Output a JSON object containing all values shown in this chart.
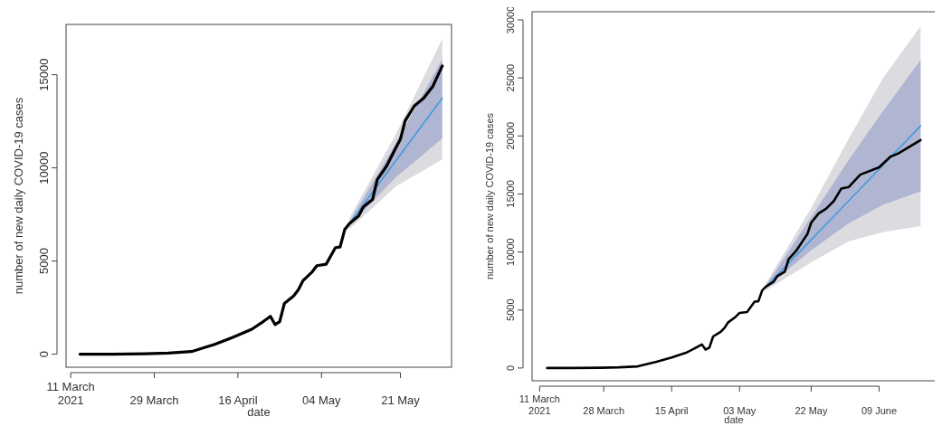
{
  "chart_data": [
    {
      "type": "line",
      "xlabel": "date",
      "ylabel": "number of new daily COVID-19 cases",
      "xlim": [
        "2021-03-10",
        "2021-06-01"
      ],
      "ylim": [
        -700,
        17700
      ],
      "xticks": [
        {
          "value": "2021-03-11",
          "label": "11 March\n2021"
        },
        {
          "value": "2021-03-29",
          "label": "29 March"
        },
        {
          "value": "2021-04-16",
          "label": "16 April"
        },
        {
          "value": "2021-05-04",
          "label": "04 May"
        },
        {
          "value": "2021-05-21",
          "label": "21 May"
        }
      ],
      "yticks": [
        0,
        5000,
        10000,
        15000
      ],
      "series": [
        {
          "color": "#dcdce0",
          "x": [
            "2021-05-10",
            "2021-05-20",
            "2021-05-30"
          ],
          "values": [
            null,
            null,
            null
          ],
          "lower": [
            6700,
            9000,
            10450
          ],
          "upper": [
            7300,
            11800,
            16920
          ]
        },
        {
          "color": "#b0b5d2",
          "x": [
            "2021-05-10",
            "2021-05-20",
            "2021-05-30"
          ],
          "values": [
            null,
            null,
            null
          ],
          "lower": [
            6900,
            9500,
            11580
          ],
          "upper": [
            7100,
            11300,
            15840
          ]
        },
        {
          "color": "#3d9be0",
          "x": [
            "2021-05-10",
            "2021-05-20",
            "2021-05-30"
          ],
          "values": [
            7000,
            10380,
            13740
          ]
        },
        {
          "color": "#000000",
          "x": [
            "2021-03-13",
            "2021-03-20",
            "2021-03-27",
            "2021-04-01",
            "2021-04-06",
            "2021-04-11",
            "2021-04-15",
            "2021-04-19",
            "2021-04-21",
            "2021-04-23",
            "2021-04-24",
            "2021-04-25",
            "2021-04-26",
            "2021-04-28",
            "2021-04-29",
            "2021-04-30",
            "2021-05-02",
            "2021-05-03",
            "2021-05-05",
            "2021-05-07",
            "2021-05-08",
            "2021-05-09",
            "2021-05-10",
            "2021-05-12",
            "2021-05-13",
            "2021-05-15",
            "2021-05-16",
            "2021-05-18",
            "2021-05-20",
            "2021-05-21",
            "2021-05-22",
            "2021-05-24",
            "2021-05-26",
            "2021-05-28",
            "2021-05-30"
          ],
          "values": [
            0,
            0,
            20,
            60,
            140,
            530,
            910,
            1340,
            1670,
            2030,
            1590,
            1750,
            2720,
            3120,
            3450,
            3940,
            4420,
            4750,
            4830,
            5720,
            5750,
            6690,
            7010,
            7420,
            7910,
            8310,
            9370,
            10090,
            11070,
            11550,
            12520,
            13330,
            13740,
            14390,
            15470
          ]
        }
      ]
    },
    {
      "type": "line",
      "xlabel": "date",
      "ylabel": "number of new daily COVID-19 cases",
      "xlim": [
        "2021-03-09",
        "2021-06-24"
      ],
      "ylim": [
        -1100,
        30700
      ],
      "xticks": [
        {
          "value": "2021-03-11",
          "label": "11 March\n2021"
        },
        {
          "value": "2021-03-28",
          "label": "28 March"
        },
        {
          "value": "2021-04-15",
          "label": "15 April"
        },
        {
          "value": "2021-05-03",
          "label": "03 May"
        },
        {
          "value": "2021-05-22",
          "label": "22 May"
        },
        {
          "value": "2021-06-09",
          "label": "09 June"
        }
      ],
      "yticks": [
        0,
        5000,
        10000,
        15000,
        20000,
        25000,
        30000
      ],
      "series": [
        {
          "color": "#dcdce0",
          "x": [
            "2021-05-10",
            "2021-05-22",
            "2021-06-01",
            "2021-06-10",
            "2021-06-20"
          ],
          "values": [
            null,
            null,
            null,
            null,
            null
          ],
          "lower": [
            6700,
            9110,
            10930,
            11710,
            12230
          ],
          "upper": [
            7300,
            13790,
            19780,
            24980,
            29450
          ]
        },
        {
          "color": "#b0b5d2",
          "x": [
            "2021-05-10",
            "2021-05-22",
            "2021-06-01",
            "2021-06-10",
            "2021-06-20"
          ],
          "values": [
            null,
            null,
            null,
            null,
            null
          ],
          "lower": [
            6900,
            10150,
            12490,
            14050,
            15220
          ],
          "upper": [
            7100,
            13010,
            17950,
            22120,
            26540
          ]
        },
        {
          "color": "#3d9be0",
          "x": [
            "2021-05-10",
            "2021-05-22",
            "2021-06-01",
            "2021-06-10",
            "2021-06-20"
          ],
          "values": [
            7000,
            11050,
            14430,
            17470,
            20870
          ]
        },
        {
          "color": "#000000",
          "x": [
            "2021-03-13",
            "2021-03-20",
            "2021-03-27",
            "2021-04-01",
            "2021-04-06",
            "2021-04-11",
            "2021-04-15",
            "2021-04-19",
            "2021-04-21",
            "2021-04-23",
            "2021-04-24",
            "2021-04-25",
            "2021-04-26",
            "2021-04-28",
            "2021-04-29",
            "2021-04-30",
            "2021-05-02",
            "2021-05-03",
            "2021-05-05",
            "2021-05-07",
            "2021-05-08",
            "2021-05-09",
            "2021-05-10",
            "2021-05-12",
            "2021-05-13",
            "2021-05-15",
            "2021-05-16",
            "2021-05-18",
            "2021-05-20",
            "2021-05-21",
            "2021-05-22",
            "2021-05-24",
            "2021-05-26",
            "2021-05-28",
            "2021-05-30",
            "2021-06-01",
            "2021-06-04",
            "2021-06-09",
            "2021-06-12",
            "2021-06-14",
            "2021-06-20"
          ],
          "values": [
            0,
            0,
            20,
            60,
            140,
            530,
            910,
            1340,
            1670,
            2030,
            1590,
            1750,
            2720,
            3120,
            3450,
            3940,
            4420,
            4750,
            4830,
            5720,
            5750,
            6690,
            7010,
            7420,
            7910,
            8310,
            9370,
            10090,
            11070,
            11550,
            12520,
            13330,
            13740,
            14390,
            15470,
            15600,
            16660,
            17300,
            18210,
            18470,
            19640
          ]
        }
      ]
    }
  ]
}
